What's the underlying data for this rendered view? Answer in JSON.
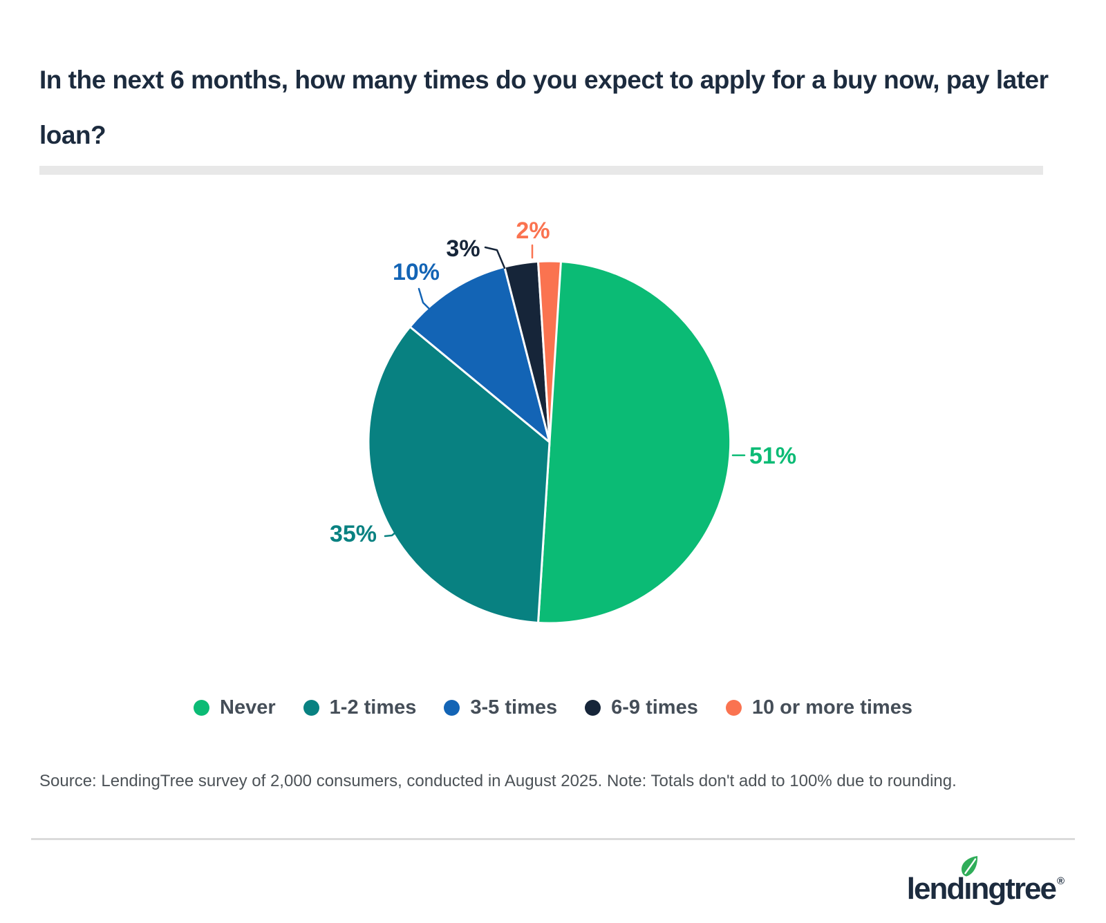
{
  "title": "In the next 6 months, how many times do you expect to apply for a buy now, pay later loan?",
  "chart_data": {
    "type": "pie",
    "title": "In the next 6 months, how many times do you expect to apply for a buy now, pay later loan?",
    "categories": [
      "Never",
      "1-2 times",
      "3-5 times",
      "6-9 times",
      "10 or more times"
    ],
    "values": [
      51,
      35,
      10,
      3,
      2
    ],
    "labels": [
      "51%",
      "35%",
      "10%",
      "3%",
      "2%"
    ],
    "unit": "%",
    "colors": [
      "#0BBB75",
      "#088181",
      "#1364B5",
      "#162539",
      "#FA7350"
    ],
    "slice_border_color": "#FFFFFF",
    "start_angle_deg": 0,
    "direction": "clockwise",
    "legend_position": "bottom"
  },
  "legend": {
    "items": [
      {
        "label": "Never",
        "color": "#0BBB75"
      },
      {
        "label": "1-2 times",
        "color": "#088181"
      },
      {
        "label": "3-5 times",
        "color": "#1364B5"
      },
      {
        "label": "6-9 times",
        "color": "#162539"
      },
      {
        "label": "10 or more times",
        "color": "#FA7350"
      }
    ]
  },
  "source_note": "Source: LendingTree survey of 2,000 consumers, conducted in August 2025. Note: Totals don't add to 100% due to rounding.",
  "branding": {
    "logo_text": "lendingtree",
    "registered_mark": "®",
    "logo_color": "#1C2B3E",
    "leaf_color": "#2FAD59"
  },
  "colors": {
    "background": "#FFFFFF",
    "title": "#1C2B3E",
    "title_rule": "#E8E8E8",
    "legend_text": "#454E58",
    "source_text": "#4C5257",
    "footer_rule": "#DBDBDB"
  }
}
